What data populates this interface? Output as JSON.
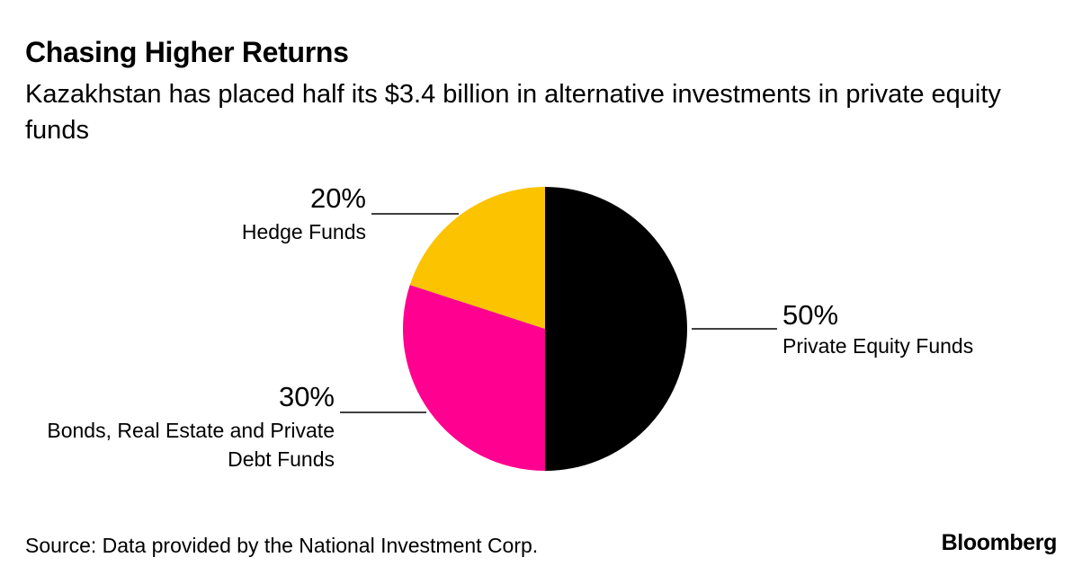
{
  "chart_data": {
    "type": "pie",
    "title": "Chasing Higher Returns",
    "subtitle": "Kazakhstan has placed half its $3.4 billion in alternative investments in private equity funds",
    "slices": [
      {
        "label": "Private Equity Funds",
        "label_lines": [
          "Private Equity Funds"
        ],
        "value": 50,
        "value_label": "50%",
        "color": "#000000"
      },
      {
        "label": "Bonds, Real Estate and Private Debt Funds",
        "label_lines": [
          "Bonds, Real Estate and Private",
          "Debt Funds"
        ],
        "value": 30,
        "value_label": "30%",
        "color": "#ff0090"
      },
      {
        "label": "Hedge Funds",
        "label_lines": [
          "Hedge Funds"
        ],
        "value": 20,
        "value_label": "20%",
        "color": "#fbc300"
      }
    ],
    "start": "12 o'clock",
    "direction": "clockwise"
  },
  "footer": {
    "source": "Source: Data provided by the National Investment Corp.",
    "brand": "Bloomberg"
  }
}
